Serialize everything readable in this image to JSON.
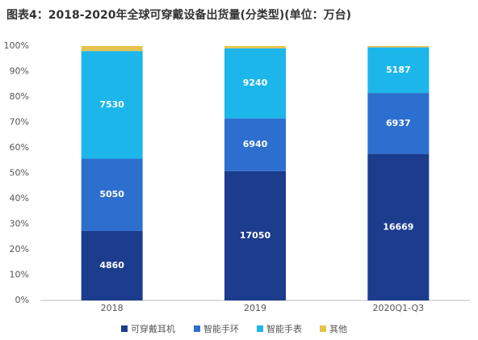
{
  "chart_data": {
    "type": "bar",
    "stacked": "percent",
    "title": "图表4：2018-2020年全球可穿戴设备出货量(分类型)(单位：万台)",
    "categories": [
      "2018",
      "2019",
      "2020Q1-Q3"
    ],
    "series": [
      {
        "name": "可穿戴耳机",
        "color": "#1c3c8e",
        "values": [
          4860,
          17050,
          16669
        ]
      },
      {
        "name": "智能手环",
        "color": "#2d6fcf",
        "values": [
          5050,
          6940,
          6937
        ]
      },
      {
        "name": "智能手表",
        "color": "#1cb6ea",
        "values": [
          7530,
          9240,
          5187
        ]
      },
      {
        "name": "其他",
        "color": "#e6c24c",
        "values": [
          350,
          300,
          150
        ]
      }
    ],
    "label_series": [
      0,
      1,
      2
    ],
    "ylim": [
      0,
      100
    ],
    "yticks": [
      {
        "value": 0,
        "label": "0%"
      },
      {
        "value": 10,
        "label": "10%"
      },
      {
        "value": 20,
        "label": "20%"
      },
      {
        "value": 30,
        "label": "30%"
      },
      {
        "value": 40,
        "label": "40%"
      },
      {
        "value": 50,
        "label": "50%"
      },
      {
        "value": 60,
        "label": "60%"
      },
      {
        "value": 70,
        "label": "70%"
      },
      {
        "value": 80,
        "label": "80%"
      },
      {
        "value": 90,
        "label": "90%"
      },
      {
        "value": 100,
        "label": "100%"
      }
    ],
    "grid": false
  }
}
